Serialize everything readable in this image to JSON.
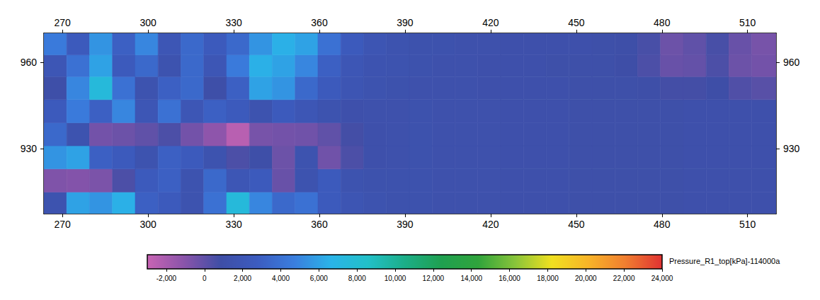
{
  "chart_data": {
    "type": "heatmap",
    "xlim": [
      263.5,
      520
    ],
    "ylim": [
      907.5,
      970
    ],
    "xticks": [
      270,
      300,
      330,
      360,
      390,
      420,
      450,
      480,
      510
    ],
    "yticks": [
      930,
      960
    ],
    "grid": false,
    "x_edges": [
      263.5,
      271.5,
      279.5,
      287.5,
      295.5,
      303.5,
      311.5,
      319.5,
      327.5,
      335.5,
      343.5,
      351.5,
      359.5,
      367.5,
      375.5,
      383.5,
      391.5,
      399.5,
      407.5,
      415.5,
      423.5,
      431.5,
      439.5,
      447.5,
      455.5,
      463.5,
      471.5,
      479.5,
      487.5,
      495.5,
      503.5,
      511.5,
      520
    ],
    "y_edges": [
      907.5,
      915,
      923,
      931,
      939,
      947,
      955,
      962.5,
      970
    ],
    "values": [
      [
        1500,
        6000,
        5500,
        6500,
        3000,
        2500,
        1500,
        4000,
        7500,
        5000,
        3500,
        4000,
        2500,
        1800,
        1500,
        1400,
        1400,
        1300,
        1300,
        1300,
        1200,
        1200,
        1200,
        1100,
        1100,
        1100,
        1100,
        1100,
        1200,
        1200,
        1200,
        1200
      ],
      [
        -800,
        -900,
        -700,
        500,
        2500,
        3000,
        1500,
        3500,
        2000,
        2500,
        -200,
        1500,
        2500,
        1500,
        1400,
        1400,
        1400,
        1300,
        1300,
        1300,
        1200,
        1200,
        1200,
        1100,
        1100,
        1100,
        1100,
        1100,
        1200,
        1200,
        1200,
        1200
      ],
      [
        5500,
        6000,
        3000,
        2500,
        1500,
        3000,
        2500,
        1500,
        500,
        1000,
        -300,
        1500,
        -400,
        500,
        1200,
        1300,
        1400,
        1300,
        1300,
        1300,
        1200,
        1200,
        1200,
        1100,
        1100,
        1100,
        1100,
        1100,
        1200,
        1200,
        1200,
        1200
      ],
      [
        3500,
        1500,
        -500,
        -300,
        0,
        500,
        -500,
        -1200,
        -2500,
        -600,
        -500,
        -400,
        0,
        700,
        1200,
        1300,
        1400,
        1300,
        1300,
        1300,
        1200,
        1200,
        1200,
        1100,
        1100,
        1100,
        1100,
        1100,
        1200,
        1200,
        1200,
        1200
      ],
      [
        2500,
        4500,
        3000,
        5000,
        2000,
        4000,
        2000,
        3000,
        2500,
        1500,
        2500,
        2000,
        1500,
        1200,
        1300,
        1300,
        1400,
        1300,
        1300,
        1300,
        1200,
        1200,
        1200,
        1100,
        1100,
        1100,
        1100,
        1100,
        1200,
        1200,
        1200,
        1200
      ],
      [
        1000,
        5000,
        7500,
        4000,
        1500,
        3000,
        3500,
        1000,
        3000,
        6000,
        5500,
        3500,
        2500,
        1800,
        1500,
        1400,
        1300,
        1300,
        1300,
        1200,
        1200,
        1200,
        1200,
        1100,
        1100,
        1100,
        1000,
        700,
        700,
        900,
        400,
        200
      ],
      [
        2000,
        4000,
        6000,
        2500,
        3500,
        1500,
        3500,
        2000,
        4500,
        6500,
        6000,
        5000,
        3000,
        2000,
        1600,
        1500,
        1400,
        1300,
        1300,
        1200,
        1200,
        1200,
        1100,
        1100,
        1100,
        900,
        500,
        -200,
        -100,
        500,
        -300,
        -500
      ],
      [
        4500,
        2500,
        5500,
        3000,
        5000,
        2000,
        3500,
        2500,
        3500,
        5500,
        6500,
        6000,
        4000,
        2500,
        1800,
        1500,
        1400,
        1400,
        1300,
        1300,
        1200,
        1200,
        1200,
        1200,
        1100,
        1000,
        600,
        -300,
        0,
        600,
        -200,
        -600
      ]
    ],
    "colorbar": {
      "label": "Pressure_R1_top[kPa]-114000a",
      "range": [
        -3000,
        24000
      ],
      "ticks": [
        -2000,
        0,
        2000,
        4000,
        6000,
        8000,
        10000,
        12000,
        14000,
        16000,
        18000,
        20000,
        22000,
        24000
      ],
      "colors": [
        "#c864b4",
        "#8a54aa",
        "#3e4ea6",
        "#3c5cc0",
        "#3a7ede",
        "#2ab4e8",
        "#22c0c8",
        "#1cae88",
        "#1fa050",
        "#30a43c",
        "#88c43a",
        "#f0e020",
        "#f8b428",
        "#f07e30",
        "#e03232"
      ]
    }
  }
}
